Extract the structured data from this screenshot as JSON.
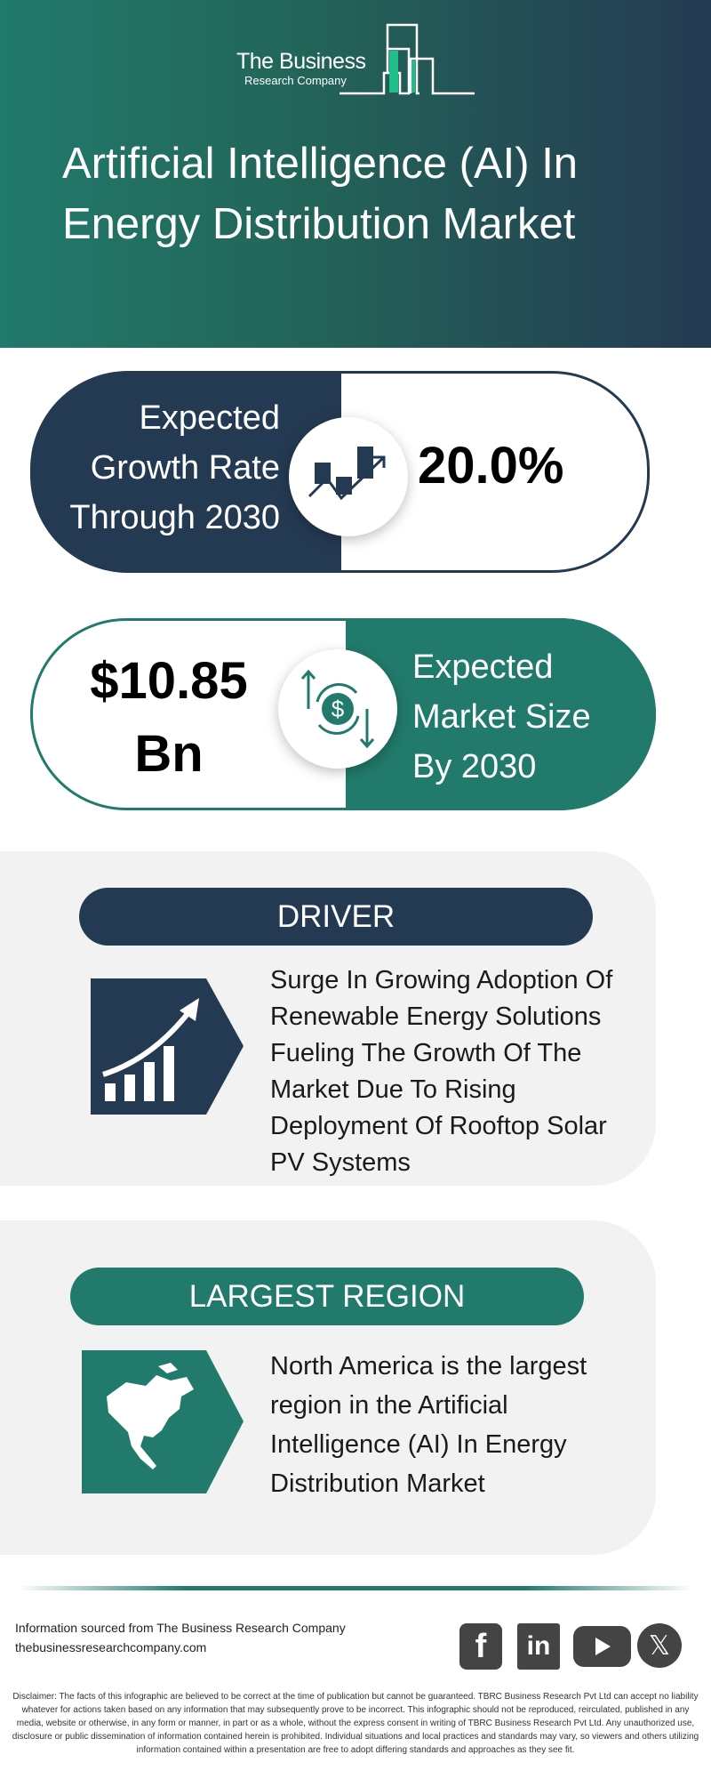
{
  "header": {
    "logo_line1": "The Business",
    "logo_line2": "Research Company",
    "title": "Artificial Intelligence (AI) In Energy Distribution Market"
  },
  "growth": {
    "label": "Expected Growth Rate Through 2030",
    "value": "20.0%",
    "icon": "growth-chart-icon"
  },
  "market": {
    "value_line1": "$10.85",
    "value_line2": "Bn",
    "label": "Expected Market Size By 2030",
    "icon": "dollar-exchange-icon"
  },
  "driver": {
    "heading": "DRIVER",
    "text": "Surge In Growing Adoption Of Renewable Energy Solutions Fueling The Growth Of The Market Due To Rising Deployment Of Rooftop Solar PV Systems",
    "icon": "rising-bars-icon"
  },
  "region": {
    "heading": "LARGEST REGION",
    "text": "North America is the largest region in the Artificial Intelligence (AI) In Energy Distribution Market",
    "icon": "north-america-map-icon"
  },
  "footer": {
    "source": "Information sourced from The Business Research Company",
    "website": "thebusinessresearchcompany.com",
    "social": [
      "facebook",
      "linkedin",
      "youtube",
      "x"
    ],
    "disclaimer": "Disclaimer: The facts of this infographic are believed to be correct at the time of publication but cannot be guaranteed. TBRC Business Research Pvt Ltd can accept no liability whatever for actions taken based on any information that may subsequently prove to be incorrect. This infographic should not be reproduced, reirculated, published in any media, website or otherwise, in any form or manner, in part or as a whole, without the express consent in writing of TBRC Business Research Pvt Ltd. Any unauthorized use, disclosure or public dissemination of information contained herein is prohibited. Individual situations and local practices and standards may vary, so viewers and others utilizing information contained within a presentation are free to adopt differing standards and approaches as they see fit."
  },
  "colors": {
    "teal": "#217a6b",
    "navy": "#243a52",
    "card": "#f2f2f2",
    "logo_accent": "#1fbf8a"
  }
}
